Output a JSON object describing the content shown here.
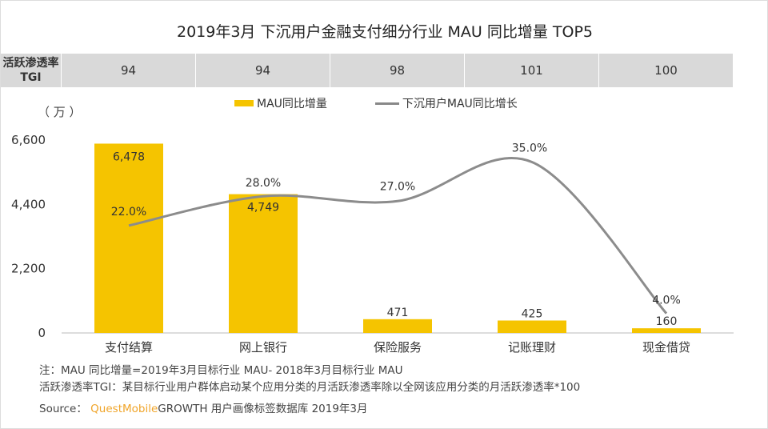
{
  "title": "2019年3月 下沉用户金融支付细分行业 MAU 同比增量 TOP5",
  "tgi": {
    "header": "活跃渗透率TGI",
    "values": [
      "94",
      "94",
      "98",
      "101",
      "100"
    ]
  },
  "unit": "（ 万 ）",
  "colors": {
    "bar": "#f5c400",
    "line": "#8c8c8c"
  },
  "chart_data": {
    "type": "bar+line",
    "title": "2019年3月 下沉用户金融支付细分行业 MAU 同比增量 TOP5",
    "categories": [
      "支付结算",
      "网上银行",
      "保险服务",
      "记账理财",
      "现金借贷"
    ],
    "series": [
      {
        "name": "MAU同比增量",
        "type": "bar",
        "values": [
          6478,
          4749,
          471,
          425,
          160
        ],
        "labels": [
          "6,478",
          "4,749",
          "471",
          "425",
          "160"
        ]
      },
      {
        "name": "下沉用户MAU同比增长",
        "type": "line",
        "values": [
          22.0,
          28.0,
          27.0,
          35.0,
          4.0
        ],
        "labels": [
          "22.0%",
          "28.0%",
          "27.0%",
          "35.0%",
          "4.0%"
        ]
      }
    ],
    "ylabel": "万",
    "ylim": [
      0,
      6600
    ],
    "yticks": [
      "0",
      "2,200",
      "4,400",
      "6,600"
    ],
    "yticks_values": [
      0,
      2200,
      4400,
      6600
    ],
    "y2lim": [
      0,
      40
    ],
    "legend": "top-center",
    "grid": false
  },
  "notes": {
    "line1": "注：MAU 同比增量=2019年3月目标行业 MAU- 2018年3月目标行业 MAU",
    "line2": "活跃渗透率TGI：某目标行业用户群体启动某个应用分类的月活跃渗透率除以全网该应用分类的月活跃渗透率*100",
    "source_prefix": "Source：",
    "source_brand": "QuestMobile",
    "source_rest": "GROWTH 用户画像标签数据库 2019年3月"
  }
}
